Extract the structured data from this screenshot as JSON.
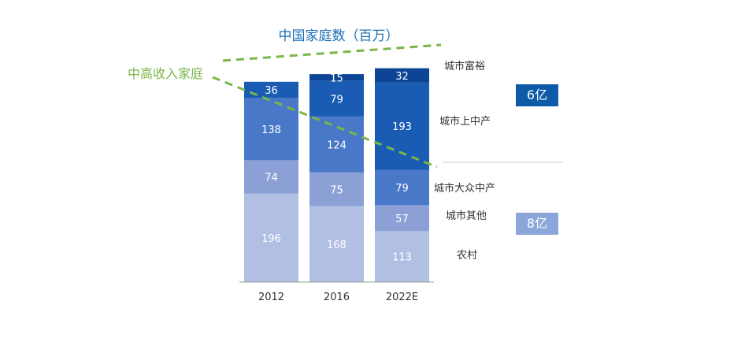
{
  "chart_data": {
    "type": "bar",
    "stacked": true,
    "title": "中国家庭数（百万）",
    "categories": [
      "2012",
      "2016",
      "2022E"
    ],
    "series": [
      {
        "name": "农村",
        "values": [
          196,
          168,
          113
        ],
        "color": "#b0bfe2"
      },
      {
        "name": "城市其他",
        "values": [
          74,
          75,
          57
        ],
        "color": "#8ba1d6"
      },
      {
        "name": "城市大众中产",
        "values": [
          138,
          124,
          79
        ],
        "color": "#4a78c8"
      },
      {
        "name": "城市上中产",
        "values": [
          36,
          79,
          193
        ],
        "color": "#1a5cb4"
      },
      {
        "name": "城市富裕",
        "values": [
          null,
          15,
          32
        ],
        "color": "#0d4596"
      }
    ],
    "value_labels": [
      [
        "196",
        "168",
        "113"
      ],
      [
        "74",
        "75",
        "57"
      ],
      [
        "138",
        "124",
        "79"
      ],
      [
        "36",
        "79",
        "193"
      ],
      [
        "",
        "15",
        "32"
      ]
    ],
    "annotation": "中高收入家庭",
    "group_badges": [
      {
        "text": "6亿",
        "color": "#0d5aa7"
      },
      {
        "text": "8亿",
        "color": "#8ba6d9"
      }
    ],
    "xlabel": "",
    "ylabel": "",
    "ylim": [
      0,
      500
    ]
  }
}
